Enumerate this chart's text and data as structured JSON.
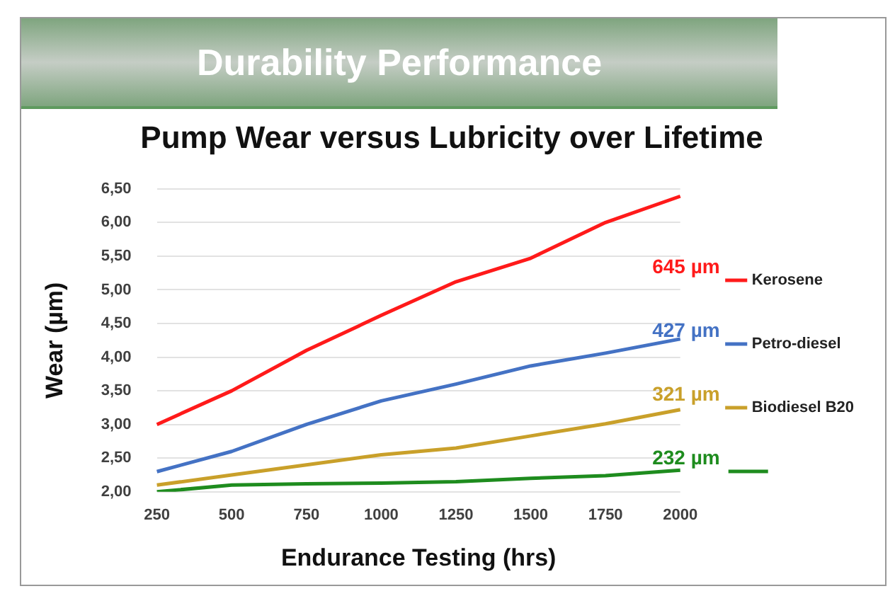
{
  "chart_data": {
    "type": "line",
    "title": "Durability Performance",
    "subtitle": "Pump Wear versus Lubricity over Lifetime",
    "xlabel": "Endurance Testing (hrs)",
    "ylabel": "Wear (µm)",
    "categories": [
      "250",
      "500",
      "750",
      "1000",
      "1250",
      "1500",
      "1750",
      "2000"
    ],
    "series": [
      {
        "name": "Kerosene",
        "color": "#ff1a1a",
        "values": [
          3.0,
          3.5,
          4.1,
          4.62,
          5.12,
          5.47,
          6.0,
          6.39
        ]
      },
      {
        "name": "Petro-diesel",
        "color": "#4472c4",
        "values": [
          2.3,
          2.6,
          3.0,
          3.35,
          3.6,
          3.87,
          4.06,
          4.27
        ]
      },
      {
        "name": "Biodiesel B20",
        "color": "#c9a02a",
        "values": [
          2.1,
          2.25,
          2.4,
          2.55,
          2.65,
          2.83,
          3.01,
          3.22
        ]
      },
      {
        "color": "#1e8c1e",
        "values": [
          2.0,
          2.1,
          2.12,
          2.13,
          2.15,
          2.2,
          2.24,
          2.32
        ]
      }
    ],
    "annotations": [
      "645 µm",
      "427 µm",
      "321 µm",
      "232 µm"
    ],
    "ylim": [
      2,
      6.5
    ],
    "yticks": [
      {
        "value": 2,
        "label": "2,00"
      },
      {
        "value": 2.5,
        "label": "2,50"
      },
      {
        "value": 3,
        "label": "3,00"
      },
      {
        "value": 3.5,
        "label": "3,50"
      },
      {
        "value": 4,
        "label": "4,00"
      },
      {
        "value": 4.5,
        "label": "4,50"
      },
      {
        "value": 5,
        "label": "5,00"
      },
      {
        "value": 5.5,
        "label": "5,50"
      },
      {
        "value": 6,
        "label": "6,00"
      },
      {
        "value": 6.5,
        "label": "6,50"
      }
    ],
    "grid": "y",
    "legend": "right",
    "marker": "none",
    "line_style": "solid"
  }
}
